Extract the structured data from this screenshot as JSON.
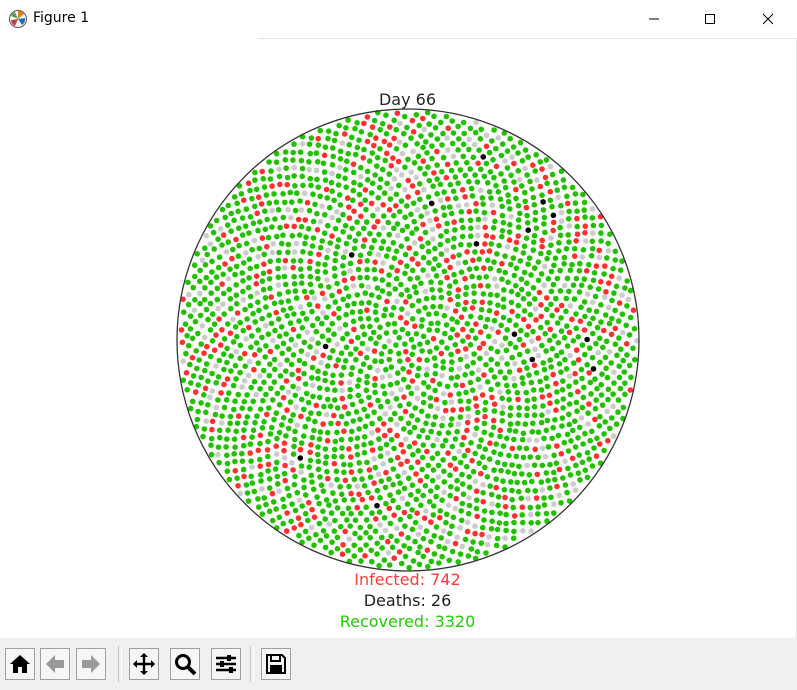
{
  "window": {
    "title": "Figure 1",
    "controls": [
      "minimize",
      "maximize",
      "close"
    ]
  },
  "plot": {
    "title": "Day 66",
    "colors": {
      "susceptible": "#cccccc",
      "infected": "#ff3030",
      "recovered": "#22c000",
      "dead": "#000000",
      "boundary": "#333333"
    }
  },
  "stats": {
    "infected_text": "Infected: 742",
    "deaths_text": "Deaths: 26",
    "recovered_text": "Recovered: 3320",
    "infected_color": "#ff3b3b",
    "deaths_color": "#222222",
    "recovered_color": "#22cc00"
  },
  "toolbar": {
    "buttons": [
      {
        "name": "home-icon"
      },
      {
        "name": "back-arrow-icon"
      },
      {
        "name": "forward-arrow-icon"
      },
      {
        "name": "pan-move-icon"
      },
      {
        "name": "zoom-magnifier-icon"
      },
      {
        "name": "configure-subplots-icon"
      },
      {
        "name": "save-floppy-icon"
      }
    ]
  }
}
